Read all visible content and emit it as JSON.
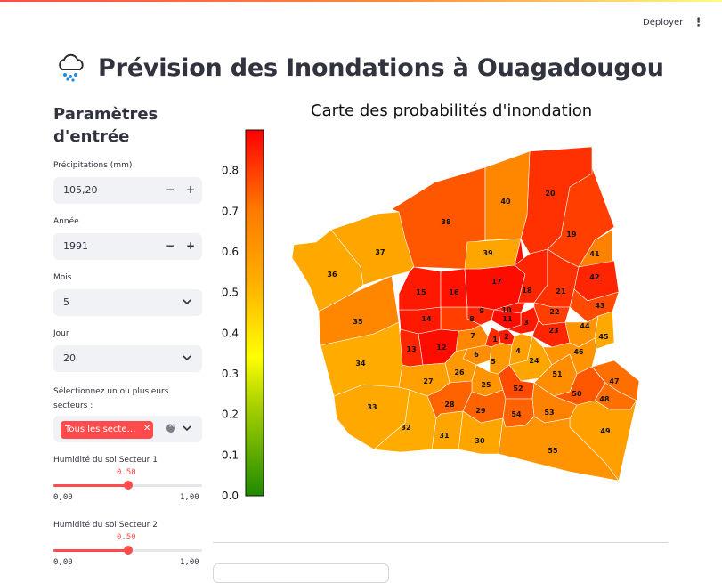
{
  "header": {
    "deploy_label": "Déployer",
    "menu_icon": "kebab-menu-icon"
  },
  "page": {
    "title": "Prévision des Inondations à Ouagadougou",
    "title_icon": "rain-cloud-icon"
  },
  "sidebar": {
    "title": "Paramètres d'entrée",
    "precip": {
      "label": "Précipitations (mm)",
      "value": "105,20"
    },
    "year": {
      "label": "Année",
      "value": "1991"
    },
    "month": {
      "label": "Mois",
      "value": "5"
    },
    "day": {
      "label": "Jour",
      "value": "20"
    },
    "sectors": {
      "label": "Sélectionnez un ou plusieurs secteurs :",
      "tag": "Tous les secteurs"
    },
    "humidity1": {
      "label": "Humidité du sol Secteur 1",
      "value": "0.50",
      "level": 0.5,
      "min": "0,00",
      "max": "1,00"
    },
    "humidity2": {
      "label": "Humidité du sol Secteur 2",
      "value": "0.50",
      "level": 0.5,
      "min": "0,00",
      "max": "1,00"
    }
  },
  "colors": {
    "accent": "#ff4b4b"
  },
  "chart_data": {
    "type": "choropleth",
    "title": "Carte des probabilités d'inondation",
    "colorbar": {
      "range": [
        0,
        0.9
      ],
      "ticks": [
        "0.0",
        "0.1",
        "0.2",
        "0.3",
        "0.4",
        "0.5",
        "0.6",
        "0.7",
        "0.8"
      ]
    },
    "sectors": [
      {
        "id": "1",
        "p": 0.83
      },
      {
        "id": "2",
        "p": 0.86
      },
      {
        "id": "3",
        "p": 0.86
      },
      {
        "id": "4",
        "p": 0.58
      },
      {
        "id": "5",
        "p": 0.6
      },
      {
        "id": "6",
        "p": 0.64
      },
      {
        "id": "7",
        "p": 0.66
      },
      {
        "id": "8",
        "p": 0.8
      },
      {
        "id": "9",
        "p": 0.84
      },
      {
        "id": "10",
        "p": 0.86
      },
      {
        "id": "11",
        "p": 0.88
      },
      {
        "id": "12",
        "p": 0.88
      },
      {
        "id": "13",
        "p": 0.84
      },
      {
        "id": "14",
        "p": 0.86
      },
      {
        "id": "15",
        "p": 0.86
      },
      {
        "id": "16",
        "p": 0.87
      },
      {
        "id": "17",
        "p": 0.88
      },
      {
        "id": "18",
        "p": 0.84
      },
      {
        "id": "19",
        "p": 0.8
      },
      {
        "id": "20",
        "p": 0.82
      },
      {
        "id": "21",
        "p": 0.82
      },
      {
        "id": "22",
        "p": 0.8
      },
      {
        "id": "23",
        "p": 0.84
      },
      {
        "id": "24",
        "p": 0.56
      },
      {
        "id": "25",
        "p": 0.62
      },
      {
        "id": "26",
        "p": 0.6
      },
      {
        "id": "27",
        "p": 0.58
      },
      {
        "id": "28",
        "p": 0.74
      },
      {
        "id": "29",
        "p": 0.74
      },
      {
        "id": "30",
        "p": 0.56
      },
      {
        "id": "31",
        "p": 0.56
      },
      {
        "id": "32",
        "p": 0.54
      },
      {
        "id": "33",
        "p": 0.55
      },
      {
        "id": "34",
        "p": 0.54
      },
      {
        "id": "35",
        "p": 0.66
      },
      {
        "id": "36",
        "p": 0.55
      },
      {
        "id": "37",
        "p": 0.56
      },
      {
        "id": "38",
        "p": 0.76
      },
      {
        "id": "39",
        "p": 0.56
      },
      {
        "id": "40",
        "p": 0.66
      },
      {
        "id": "41",
        "p": 0.68
      },
      {
        "id": "42",
        "p": 0.84
      },
      {
        "id": "43",
        "p": 0.78
      },
      {
        "id": "44",
        "p": 0.62
      },
      {
        "id": "45",
        "p": 0.55
      },
      {
        "id": "46",
        "p": 0.62
      },
      {
        "id": "47",
        "p": 0.72
      },
      {
        "id": "48",
        "p": 0.72
      },
      {
        "id": "49",
        "p": 0.58
      },
      {
        "id": "50",
        "p": 0.76
      },
      {
        "id": "51",
        "p": 0.64
      },
      {
        "id": "52",
        "p": 0.78
      },
      {
        "id": "53",
        "p": 0.68
      },
      {
        "id": "54",
        "p": 0.74
      },
      {
        "id": "55",
        "p": 0.62
      }
    ]
  }
}
